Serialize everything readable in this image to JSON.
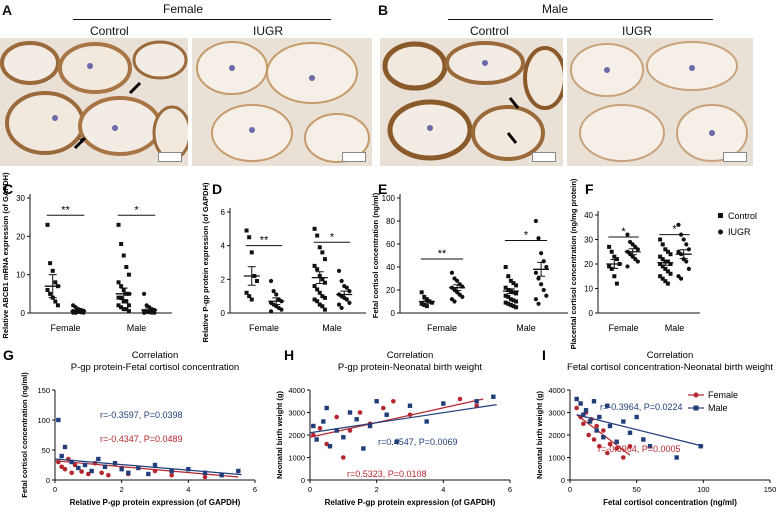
{
  "panels": {
    "A": {
      "letter": "A",
      "group": "Female",
      "images": [
        "Control",
        "IUGR"
      ]
    },
    "B": {
      "letter": "B",
      "group": "Male",
      "images": [
        "Control",
        "IUGR"
      ]
    }
  },
  "colors": {
    "female": "#b5262e",
    "male": "#223e7a",
    "ihc_brown": "#9a6a3a",
    "ihc_bg": "#e9e0d6"
  },
  "chart_data": [
    {
      "panel": "C",
      "type": "scatter",
      "ylabel": "Relative ABCB1 mRNA expression (of GAPDH)",
      "categories": [
        "Female",
        "Male"
      ],
      "ylim": [
        0,
        30
      ],
      "yticks": [
        0,
        10,
        20,
        30
      ],
      "groups": [
        {
          "x": 0.82,
          "values": [
            23,
            13,
            11,
            8,
            7,
            6,
            5,
            4,
            3,
            2
          ]
        },
        {
          "x": 1.18,
          "values": [
            2,
            1.5,
            1,
            0.8,
            0.6,
            0.5,
            0.4,
            0.3,
            0.2,
            0.1,
            0.1,
            0.05
          ]
        },
        {
          "x": 1.82,
          "values": [
            23,
            18,
            15,
            12,
            10,
            8,
            7,
            6,
            5,
            5,
            4,
            4,
            3,
            3,
            2,
            2,
            1.5,
            1,
            1,
            0.5
          ]
        },
        {
          "x": 2.18,
          "values": [
            5,
            2,
            1.5,
            1,
            0.8,
            0.5,
            0.3,
            0.2,
            0.1,
            0.1,
            0.05
          ]
        }
      ],
      "summary": [
        {
          "x": 0.82,
          "mean": 7,
          "sem": 3
        },
        {
          "x": 1.18,
          "mean": 0.5,
          "sem": 0.2
        },
        {
          "x": 1.82,
          "mean": 5,
          "sem": 1.5
        },
        {
          "x": 2.18,
          "mean": 0.8,
          "sem": 0.5
        }
      ],
      "sig": [
        {
          "x1": 0.82,
          "x2": 1.18,
          "y": 25.5,
          "label": "**"
        },
        {
          "x1": 1.82,
          "x2": 2.18,
          "y": 25.5,
          "label": "*"
        }
      ]
    },
    {
      "panel": "D",
      "type": "scatter",
      "ylabel": "Relative P-gp protein expression (of GAPDH)",
      "categories": [
        "Female",
        "Male"
      ],
      "ylim": [
        0,
        6
      ],
      "yticks": [
        0,
        2,
        4,
        6
      ],
      "groups": [
        {
          "x": 0.82,
          "values": [
            4.9,
            4.5,
            3.6,
            2.2,
            1.9,
            1.2,
            1.0,
            0.8
          ]
        },
        {
          "x": 1.18,
          "values": [
            1.9,
            1.3,
            1.1,
            0.8,
            0.7,
            0.6,
            0.5,
            0.4,
            0.3,
            0.2,
            0.1
          ]
        },
        {
          "x": 1.82,
          "values": [
            5.0,
            4.6,
            3.9,
            3.6,
            3.2,
            2.8,
            2.6,
            2.2,
            2.0,
            1.8,
            1.6,
            1.4,
            1.2,
            1.0,
            0.9,
            0.8,
            0.7,
            0.5,
            0.4,
            0.2
          ]
        },
        {
          "x": 2.18,
          "values": [
            2.5,
            1.9,
            1.6,
            1.5,
            1.3,
            1.1,
            1.0,
            0.9,
            0.8,
            0.6,
            0.5,
            0.3
          ]
        }
      ],
      "summary": [
        {
          "x": 0.82,
          "mean": 2.2,
          "sem": 0.55
        },
        {
          "x": 1.18,
          "mean": 0.7,
          "sem": 0.2
        },
        {
          "x": 1.82,
          "mean": 2.1,
          "sem": 0.35
        },
        {
          "x": 2.18,
          "mean": 1.1,
          "sem": 0.2
        }
      ],
      "sig": [
        {
          "x1": 0.82,
          "x2": 1.18,
          "y": 4.0,
          "label": "**"
        },
        {
          "x1": 1.82,
          "x2": 2.18,
          "y": 4.2,
          "label": "*"
        }
      ]
    },
    {
      "panel": "E",
      "type": "scatter",
      "ylabel": "Fetal cortisol concentration (ng/ml)",
      "categories": [
        "Female",
        "Male"
      ],
      "ylim": [
        0,
        100
      ],
      "yticks": [
        0,
        20,
        40,
        60,
        80,
        100
      ],
      "groups": [
        {
          "x": 0.82,
          "values": [
            18,
            14,
            12,
            10,
            9,
            8,
            7,
            6
          ]
        },
        {
          "x": 1.18,
          "values": [
            35,
            30,
            28,
            25,
            23,
            22,
            20,
            18,
            16,
            14,
            12,
            10
          ]
        },
        {
          "x": 1.82,
          "values": [
            40,
            32,
            28,
            26,
            24,
            22,
            20,
            19,
            18,
            17,
            15,
            14,
            12,
            11,
            10,
            9,
            8,
            7,
            6,
            5
          ]
        },
        {
          "x": 2.18,
          "values": [
            80,
            65,
            52,
            45,
            40,
            35,
            30,
            25,
            20,
            15,
            12,
            8
          ]
        }
      ],
      "summary": [
        {
          "x": 0.82,
          "mean": 10,
          "sem": 1.5
        },
        {
          "x": 1.18,
          "mean": 22,
          "sem": 2.5
        },
        {
          "x": 1.82,
          "mean": 19,
          "sem": 2
        },
        {
          "x": 2.18,
          "mean": 38,
          "sem": 6
        }
      ],
      "sig": [
        {
          "x1": 0.82,
          "x2": 1.18,
          "y": 47,
          "label": "**"
        },
        {
          "x1": 1.82,
          "x2": 2.18,
          "y": 63,
          "label": "*"
        }
      ]
    },
    {
      "panel": "F",
      "type": "scatter",
      "ylabel": "Placental cortisol concentration (ng/mg protein)",
      "categories": [
        "Female",
        "Male"
      ],
      "ylim": [
        0,
        40
      ],
      "yticks": [
        0,
        10,
        20,
        30,
        40
      ],
      "groups": [
        {
          "x": 0.82,
          "values": [
            27,
            25,
            23,
            22,
            20,
            19,
            18,
            15,
            12
          ]
        },
        {
          "x": 1.18,
          "values": [
            32,
            29,
            28,
            27,
            26,
            25,
            24,
            23,
            22,
            21,
            19
          ]
        },
        {
          "x": 1.82,
          "values": [
            30,
            28,
            26,
            25,
            24,
            23,
            22,
            21,
            21,
            20,
            20,
            19,
            18,
            17,
            16,
            15,
            14,
            13,
            12
          ]
        },
        {
          "x": 2.18,
          "values": [
            36,
            32,
            30,
            28,
            26,
            25,
            24,
            22,
            21,
            18,
            15,
            14
          ]
        }
      ],
      "summary": [
        {
          "x": 0.82,
          "mean": 20,
          "sem": 1.8
        },
        {
          "x": 1.18,
          "mean": 25,
          "sem": 1.2
        },
        {
          "x": 1.82,
          "mean": 20.5,
          "sem": 1
        },
        {
          "x": 2.18,
          "mean": 24,
          "sem": 1.8
        }
      ],
      "sig": [
        {
          "x1": 0.82,
          "x2": 1.18,
          "y": 31,
          "label": "*"
        },
        {
          "x1": 1.82,
          "x2": 2.18,
          "y": 32,
          "label": "*"
        }
      ],
      "legend": [
        "Control",
        "IUGR"
      ]
    },
    {
      "panel": "G",
      "type": "scatter",
      "title": "Correlation",
      "subtitle": "P-gp protein-Fetal cortisol concentration",
      "xlabel": "Relative P-gp protein expression (of GAPDH)",
      "ylabel": "Fetal cortisol concentration (ng/ml)",
      "xlim": [
        0,
        6
      ],
      "ylim": [
        0,
        150
      ],
      "xticks": [
        0,
        2,
        4,
        6
      ],
      "yticks": [
        0,
        50,
        100,
        150
      ],
      "series": [
        {
          "name": "Female",
          "points": [
            [
              0.1,
              30
            ],
            [
              0.2,
              22
            ],
            [
              0.3,
              18
            ],
            [
              0.4,
              35
            ],
            [
              0.5,
              12
            ],
            [
              0.6,
              25
            ],
            [
              0.8,
              14
            ],
            [
              1.0,
              10
            ],
            [
              1.2,
              28
            ],
            [
              1.4,
              12
            ],
            [
              1.6,
              8
            ],
            [
              2.0,
              20
            ],
            [
              2.2,
              10
            ],
            [
              3.0,
              15
            ],
            [
              3.5,
              8
            ],
            [
              4.5,
              5
            ]
          ],
          "fit": [
            [
              0,
              32
            ],
            [
              5.5,
              5
            ]
          ],
          "stat": "r=-0.4347, P=0.0489"
        },
        {
          "name": "Male",
          "points": [
            [
              0.1,
              100
            ],
            [
              0.2,
              40
            ],
            [
              0.3,
              55
            ],
            [
              0.5,
              30
            ],
            [
              0.7,
              20
            ],
            [
              0.9,
              25
            ],
            [
              1.1,
              15
            ],
            [
              1.3,
              35
            ],
            [
              1.5,
              22
            ],
            [
              1.8,
              28
            ],
            [
              2.0,
              18
            ],
            [
              2.2,
              12
            ],
            [
              2.5,
              20
            ],
            [
              2.8,
              10
            ],
            [
              3.0,
              25
            ],
            [
              3.5,
              15
            ],
            [
              4.0,
              18
            ],
            [
              4.5,
              12
            ],
            [
              5.0,
              8
            ],
            [
              5.5,
              15
            ]
          ],
          "fit": [
            [
              0,
              35
            ],
            [
              5.6,
              9
            ]
          ],
          "stat": "r=-0.3597, P=0.0398"
        }
      ]
    },
    {
      "panel": "H",
      "type": "scatter",
      "title": "Correlation",
      "subtitle": "P-gp protein-Neonatal birth weight",
      "xlabel": "Relative P-gp protein expression (of GAPDH)",
      "ylabel": "Neonatal birth weight (g)",
      "xlim": [
        0,
        6
      ],
      "ylim": [
        0,
        4000
      ],
      "xticks": [
        0,
        2,
        4,
        6
      ],
      "yticks": [
        0,
        1000,
        2000,
        3000,
        4000
      ],
      "series": [
        {
          "name": "Female",
          "points": [
            [
              0.1,
              2000
            ],
            [
              0.3,
              2300
            ],
            [
              0.5,
              1600
            ],
            [
              0.8,
              2800
            ],
            [
              1.0,
              1000
            ],
            [
              1.2,
              2200
            ],
            [
              1.5,
              3000
            ],
            [
              1.8,
              2500
            ],
            [
              2.2,
              3200
            ],
            [
              2.5,
              3500
            ],
            [
              3.0,
              2900
            ],
            [
              4.5,
              3600
            ],
            [
              5.0,
              3300
            ]
          ],
          "fit": [
            [
              0,
              1900
            ],
            [
              5.2,
              3600
            ]
          ],
          "stat": "r=0.5323, P=0.0108"
        },
        {
          "name": "Male",
          "points": [
            [
              0.1,
              2400
            ],
            [
              0.2,
              1800
            ],
            [
              0.4,
              2600
            ],
            [
              0.5,
              3200
            ],
            [
              0.6,
              1500
            ],
            [
              0.8,
              2200
            ],
            [
              1.0,
              1900
            ],
            [
              1.2,
              3000
            ],
            [
              1.4,
              2700
            ],
            [
              1.6,
              1400
            ],
            [
              1.8,
              2400
            ],
            [
              2.0,
              3500
            ],
            [
              2.3,
              2900
            ],
            [
              2.6,
              1700
            ],
            [
              3.0,
              3300
            ],
            [
              3.5,
              2600
            ],
            [
              4.0,
              3400
            ],
            [
              5.0,
              3500
            ],
            [
              5.5,
              3700
            ]
          ],
          "fit": [
            [
              0,
              2100
            ],
            [
              5.6,
              3350
            ]
          ],
          "stat": "r=0.4547, P=0.0069"
        }
      ]
    },
    {
      "panel": "I",
      "type": "scatter",
      "title": "Correlation",
      "subtitle": "Fetal cortisol concentration-Neonatal birth weight",
      "xlabel": "Fetal cortisol concentration (ng/ml)",
      "ylabel": "Neonatal birth weight (g)",
      "xlim": [
        0,
        150
      ],
      "ylim": [
        0,
        4000
      ],
      "xticks": [
        0,
        50,
        100,
        150
      ],
      "yticks": [
        0,
        1000,
        2000,
        3000,
        4000
      ],
      "legend": [
        "Female",
        "Male"
      ],
      "series": [
        {
          "name": "Female",
          "points": [
            [
              5,
              3200
            ],
            [
              8,
              2800
            ],
            [
              10,
              2500
            ],
            [
              12,
              3000
            ],
            [
              14,
              2000
            ],
            [
              16,
              2700
            ],
            [
              18,
              1800
            ],
            [
              20,
              2400
            ],
            [
              22,
              1500
            ],
            [
              25,
              2200
            ],
            [
              28,
              1200
            ],
            [
              30,
              1600
            ],
            [
              35,
              1400
            ],
            [
              40,
              1000
            ],
            [
              45,
              1500
            ]
          ],
          "fit": [
            [
              5,
              2900
            ],
            [
              45,
              1100
            ]
          ],
          "stat": "r=-0.6964, P=0.0005"
        },
        {
          "name": "Male",
          "points": [
            [
              5,
              3600
            ],
            [
              8,
              3400
            ],
            [
              10,
              2900
            ],
            [
              12,
              3100
            ],
            [
              15,
              2600
            ],
            [
              18,
              3500
            ],
            [
              20,
              2200
            ],
            [
              22,
              2800
            ],
            [
              25,
              1900
            ],
            [
              28,
              3300
            ],
            [
              30,
              2400
            ],
            [
              35,
              1700
            ],
            [
              40,
              2600
            ],
            [
              45,
              2100
            ],
            [
              50,
              2800
            ],
            [
              55,
              1800
            ],
            [
              60,
              1500
            ],
            [
              80,
              1000
            ],
            [
              98,
              1500
            ]
          ],
          "fit": [
            [
              5,
              2900
            ],
            [
              100,
              1500
            ]
          ],
          "stat": "r=-0.3964, P=0.0224"
        }
      ]
    }
  ]
}
